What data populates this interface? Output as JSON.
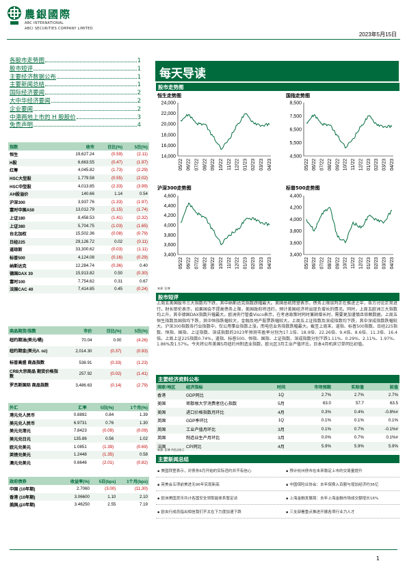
{
  "header": {
    "brand_cn": "農銀國際",
    "brand_en_line1": "ABC INTERNATIONAL",
    "brand_en_line2": "ABCI SECURITIES COMPANY LIMITED",
    "date": "2023年5月15日"
  },
  "toc": [
    {
      "title": "各股市走势图",
      "page": "1"
    },
    {
      "title": "股市短评",
      "page": "1"
    },
    {
      "title": "主要经济数据公布",
      "page": "1"
    },
    {
      "title": "主要新闻总结",
      "page": "1"
    },
    {
      "title": "国际经济要闻",
      "page": "2"
    },
    {
      "title": "大中华经济要闻",
      "page": "2"
    },
    {
      "title": "企业要闻",
      "page": "2"
    },
    {
      "title": "中港两地上市的 H 股股价",
      "page": "3"
    },
    {
      "title": "免责声明",
      "page": "4"
    }
  ],
  "indices_table": {
    "headers": [
      "指数",
      "收市",
      "日比(%)",
      "5日(%)"
    ],
    "rows": [
      [
        "恒生",
        "19,627.24",
        "(0.59)",
        "(2.11)"
      ],
      [
        "H股",
        "6,663.55",
        "(0.47)",
        "(1.97)"
      ],
      [
        "红筹",
        "4,045.82",
        "(1.73)",
        "(2.29)"
      ],
      [
        "HSC大型股",
        "1,779.58",
        "(0.55)",
        "(2.02)"
      ],
      [
        "HSC中型股",
        "4,013.85",
        "(2.33)",
        "(3.99)"
      ],
      [
        "AH股溢价",
        "140.66",
        "1.14",
        "0.54"
      ],
      [
        "沪深300",
        "3,937.76",
        "(1.33)",
        "(1.97)"
      ],
      [
        "富时中国A50",
        "13,012.79",
        "(1.15)",
        "(1.74)"
      ],
      [
        "上证180",
        "8,458.53",
        "(1.41)",
        "(2.32)"
      ],
      [
        "上证380",
        "5,704.75",
        "(1.03)",
        "(1.65)"
      ],
      [
        "台北加权",
        "15,502.36",
        "(0.08)",
        "(0.79)"
      ],
      [
        "日经225",
        "29,126.72",
        "0.02",
        "(0.11)"
      ],
      [
        "道琼斯",
        "33,300.62",
        "(0.03)",
        "(1.11)"
      ],
      [
        "标普500",
        "4,124.08",
        "(0.16)",
        "(0.29)"
      ],
      [
        "纳斯达克",
        "12,284.74",
        "(0.36)",
        "0.40"
      ],
      [
        "德国DAX 30",
        "15,913.82",
        "0.50",
        "(0.30)"
      ],
      [
        "富时100",
        "7,754.62",
        "0.31",
        "0.67"
      ],
      [
        "法国CAC 40",
        "7,414.85",
        "0.45",
        "(0.24)"
      ]
    ]
  },
  "commodities_table": {
    "headers": [
      "商品期货/指数",
      "市价",
      "日比(%)",
      "5日(%)"
    ],
    "rows": [
      [
        "纽约期油(美元/桶)",
        "70.04",
        "0.00",
        "(4.26)"
      ],
      [
        "纽约期金(美元/t. oz)",
        "2,014.30",
        "(0.37)",
        "(0.93)"
      ],
      [
        "标普高盛 商品指数",
        "538.91",
        "(0.33)",
        "(1.23)"
      ],
      [
        "CRB大宗商品 期货价格指数",
        "257.92",
        "(0.02)",
        "(1.41)"
      ],
      [
        "罗杰斯国际 商品指数",
        "3,486.63",
        "(0.14)",
        "(2.79)"
      ]
    ]
  },
  "fx_table": {
    "headers": [
      "外汇",
      "汇率",
      "5日(%)",
      "1个月(%)"
    ],
    "rows": [
      [
        "港元兑人民币",
        "0.8892",
        "0.84",
        "1.39"
      ],
      [
        "美元兑人民币",
        "6.9731",
        "0.76",
        "1.30"
      ],
      [
        "美元兑港元",
        "7.8423",
        "(0.09)",
        "(0.09)"
      ],
      [
        "美元兑日元",
        "135.86",
        "0.56",
        "1.02"
      ],
      [
        "欧元兑美元",
        "1.0851",
        "(1.39)",
        "(0.69)"
      ],
      [
        "英镑兑美元",
        "1.2448",
        "(1.35)",
        "0.58"
      ],
      [
        "澳元兑美元",
        "0.6646",
        "(2.01)",
        "(0.82)"
      ]
    ]
  },
  "bond_table": {
    "headers": [
      "政府债券",
      "收益率(%)",
      "5日(bps)",
      "1个月(bps)"
    ],
    "rows": [
      [
        "中国 (10年期)",
        "2.7060",
        "(3.00)",
        "(11.30)"
      ],
      [
        "香港 (10年期)",
        "3.06600",
        "1.10",
        "2.10"
      ],
      [
        "美国 (10年期)",
        "3.46250",
        "2.55",
        "7.19"
      ]
    ]
  },
  "source_note": "来源: 彭博",
  "banner": "每天导读",
  "sections": {
    "charts": "股市走势图",
    "commentary": "股市短评",
    "economic": "主要经济资料公布",
    "news": "主要新闻总结"
  },
  "charts": [
    {
      "title": "恒生走势图",
      "yticks": [
        "24,000",
        "22,000",
        "20,000",
        "18,000",
        "16,000",
        "14,000"
      ]
    },
    {
      "title": "国指走势图",
      "yticks": [
        "8,500",
        "7,500",
        "6,500",
        "5,500",
        "4,500"
      ]
    },
    {
      "title": "沪深300走势图",
      "yticks": [
        "4,600",
        "4,400",
        "4,200",
        "4,000",
        "3,800",
        "3,600",
        "3,400"
      ]
    },
    {
      "title": "标普500走势图",
      "yticks": [
        "4,400",
        "4,200",
        "4,000",
        "3,800",
        "3,600",
        "3,400"
      ]
    }
  ],
  "chart_data": [
    {
      "type": "line",
      "title": "恒生走势图",
      "x": [
        "05/22",
        "06/22",
        "07/22",
        "08/22",
        "09/22",
        "10/22",
        "11/22",
        "12/22",
        "01/23",
        "02/23",
        "03/23",
        "04/23"
      ],
      "values": [
        20700,
        21800,
        20100,
        19900,
        17700,
        15200,
        17200,
        19800,
        21900,
        20300,
        19700,
        19900
      ],
      "ylim": [
        14000,
        24000
      ]
    },
    {
      "type": "line",
      "title": "国指走势图",
      "x": [
        "05/22",
        "06/22",
        "07/22",
        "08/22",
        "09/22",
        "10/22",
        "11/22",
        "12/22",
        "01/23",
        "02/23",
        "03/23",
        "04/23"
      ],
      "values": [
        7000,
        7600,
        6900,
        6800,
        6000,
        5100,
        5800,
        6700,
        7500,
        6900,
        6700,
        6700
      ],
      "ylim": [
        4500,
        8500
      ]
    },
    {
      "type": "line",
      "title": "沪深300走势图",
      "x": [
        "05/22",
        "06/22",
        "07/22",
        "08/22",
        "09/22",
        "10/22",
        "11/22",
        "12/22",
        "01/23",
        "02/23",
        "03/23",
        "04/23"
      ],
      "values": [
        4050,
        4450,
        4250,
        4150,
        3900,
        3600,
        3800,
        3900,
        4100,
        4150,
        4050,
        4000
      ],
      "ylim": [
        3400,
        4600
      ]
    },
    {
      "type": "line",
      "title": "标普500走势图",
      "x": [
        "05/22",
        "06/22",
        "07/22",
        "08/22",
        "09/22",
        "10/22",
        "11/22",
        "12/22",
        "01/23",
        "02/23",
        "03/23",
        "04/23"
      ],
      "values": [
        4000,
        3800,
        4100,
        4200,
        3700,
        3600,
        3950,
        3850,
        4050,
        4000,
        3950,
        4150
      ],
      "ylim": [
        3400,
        4400
      ]
    }
  ],
  "chart_source": "来源: 彭博",
  "commentary": "上周五美国股市三大指数均下跌，其中纳斯达克指数跌幅最大。美国总统拜登表示，债务上限谈判正在推进之中，各方讨论正常进行。财长耶伦表示，如果国会不提高债务上限，美国政府将违约，预计美国经济将出现负增长的情况。同时，上周五欧洲三大指数均上升，其中德国DAX指数升幅最大。欧洲央行管委Visco表示，在考虑政策时同时兼顾增长时，需要更加谨慎且依赖数据。上周五恒生指数及国指均下跌，其中恒指跌幅较大，金融及地产股票跌幅较大。上周五上证指数及深成指数均下跌，其中深成指数跌幅较大。沪深300指数各行业指数中，仅公用事业指数上涨，而电信业务指数跌幅最大。截至上周末，道指、标普500指数、日经225指数、恒指、国指、上证指数、深成指数的2023年预测市盈率分别为17.1倍、18.9倍、22.26倍、9.4倍、8.6倍、11.3倍、16.4倍。上周上证225指数0.74%，道指、标普500、恒指、国指、上证指数、深成指数分别下跌1.11%、0.29%、2.11%、1.97%、1.86%及1.57%。今天将公布美国5月纽约州制造业指数，欧元区3月工业产值环比，日本4月机床订单同比初值。",
  "economic_table": {
    "headers": [
      "国家/地区",
      "经济指标",
      "时间",
      "市场预期",
      "实际值",
      "前值"
    ],
    "rows": [
      [
        "香港",
        "GDP同比",
        "1Q",
        "2.7%",
        "2.7%",
        "2.7%"
      ],
      [
        "美国",
        "密歇根大学消费者信心指数",
        "5月",
        "63.0",
        "57.7",
        "63.5"
      ],
      [
        "美国",
        "进口价格指数月环比",
        "4月",
        "0.3%",
        "0.4%",
        "-0.8%#"
      ],
      [
        "英国",
        "GDP季环比",
        "1Q",
        "0.1%",
        "0.1%",
        "0.1%"
      ],
      [
        "英国",
        "工业产值月环比",
        "3月",
        "0.1%",
        "0.7%",
        "-0.1%#"
      ],
      [
        "英国",
        "制造业生产月环比",
        "3月",
        "0.0%",
        "0.7%",
        "0.1%#"
      ],
      [
        "法国",
        "CPI同比",
        "4月",
        "5.9%",
        "5.9%",
        "5.9%"
      ]
    ],
    "note": "来源: 彭博  #经过修订"
  },
  "news": [
    [
      "美国拜登表示，对债务6月开始的实际违约并不有信心",
      "预计杭州债市在未来稳定上市的交易量提升"
    ],
    [
      "英美会五项前美进无96年实现新高",
      "中国保险业协会：去年保费入百额与增加经济约36亿"
    ],
    [
      "欧洲美国货币共计各国安全领取能体系暂定谈",
      "上海金融发展局：去年上海金融市场成交额增长16%"
    ],
    [
      "欧央行成员指出相信我们不太在下力度加速下跌",
      "三支部署重点推进开展各项行业力人才"
    ]
  ],
  "page_number": "1"
}
